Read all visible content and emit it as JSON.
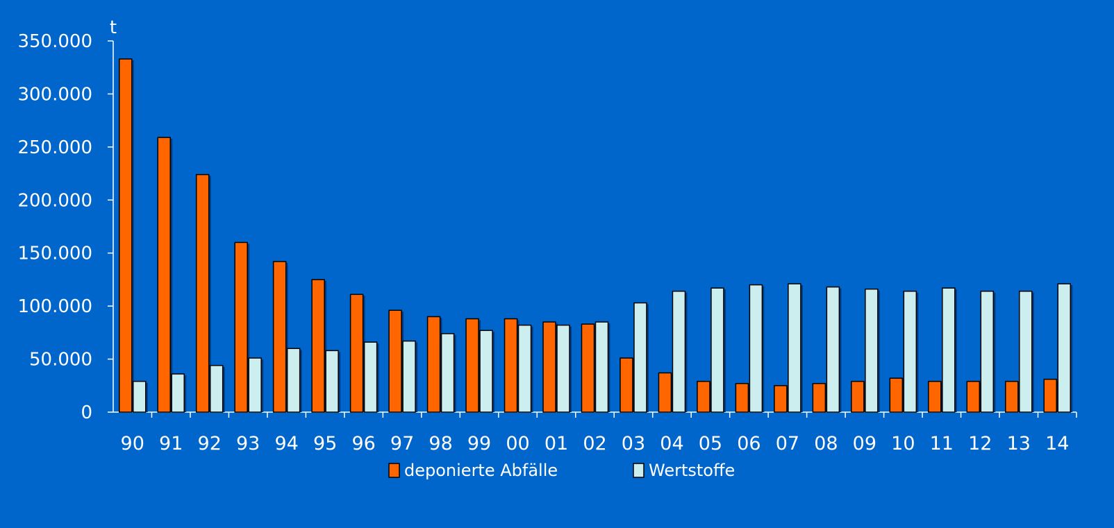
{
  "chart_data": {
    "type": "bar",
    "unit_label": "t",
    "categories": [
      "90",
      "91",
      "92",
      "93",
      "94",
      "95",
      "96",
      "97",
      "98",
      "99",
      "00",
      "01",
      "02",
      "03",
      "04",
      "05",
      "06",
      "07",
      "08",
      "09",
      "10",
      "11",
      "12",
      "13",
      "14"
    ],
    "series": [
      {
        "name": "deponierte Abfälle",
        "color": "#ff6600",
        "values": [
          333000,
          259000,
          224000,
          160000,
          142000,
          125000,
          111000,
          96000,
          90000,
          88000,
          88000,
          85000,
          83000,
          51000,
          37000,
          29000,
          27000,
          25000,
          27000,
          29000,
          32000,
          29000,
          29000,
          29000,
          31000
        ]
      },
      {
        "name": "Wertstoffe",
        "color": "#cdeeee",
        "values": [
          29000,
          36000,
          44000,
          51000,
          60000,
          58000,
          66000,
          67000,
          74000,
          77000,
          82000,
          82000,
          85000,
          103000,
          114000,
          117000,
          120000,
          121000,
          118000,
          116000,
          114000,
          117000,
          114000,
          114000,
          121000
        ]
      }
    ],
    "ylim": [
      0,
      350000
    ],
    "yticks": [
      {
        "value": 0,
        "label": "0"
      },
      {
        "value": 50000,
        "label": "50.000"
      },
      {
        "value": 100000,
        "label": "100.000"
      },
      {
        "value": 150000,
        "label": "150.000"
      },
      {
        "value": 200000,
        "label": "200.000"
      },
      {
        "value": 250000,
        "label": "250.000"
      },
      {
        "value": 300000,
        "label": "300.000"
      },
      {
        "value": 350000,
        "label": "350.000"
      }
    ],
    "grid": false,
    "legend_position": "bottom-center"
  }
}
